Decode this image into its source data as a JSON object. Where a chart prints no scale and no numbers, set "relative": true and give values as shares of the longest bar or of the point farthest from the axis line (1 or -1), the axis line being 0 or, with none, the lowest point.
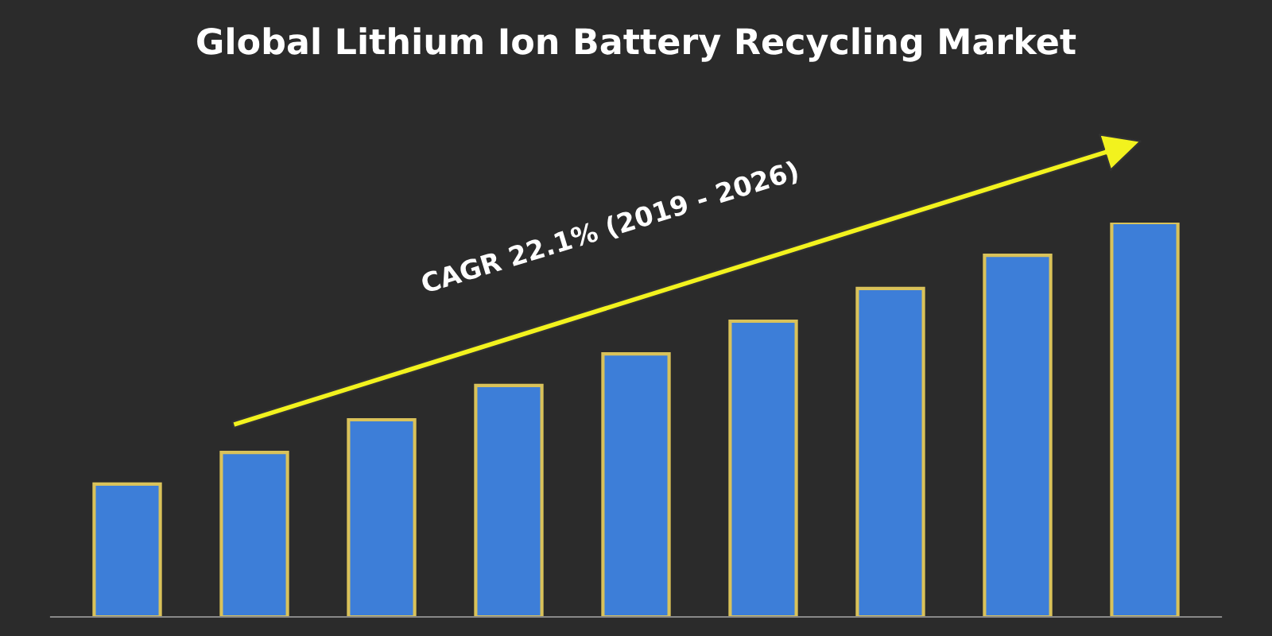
{
  "chart_data": {
    "type": "bar",
    "title": "Global Lithium Ion Battery Recycling Market",
    "relative": true,
    "categories": [
      null,
      null,
      null,
      null,
      null,
      null,
      null,
      null,
      null
    ],
    "values": [
      0.337,
      0.417,
      0.5,
      0.587,
      0.667,
      0.75,
      0.833,
      0.917,
      1.0
    ],
    "color": "#3d7ed8",
    "grid": false,
    "legend": false,
    "annotations": [
      "CAGR 22.1% (2019 - 2026)"
    ]
  }
}
